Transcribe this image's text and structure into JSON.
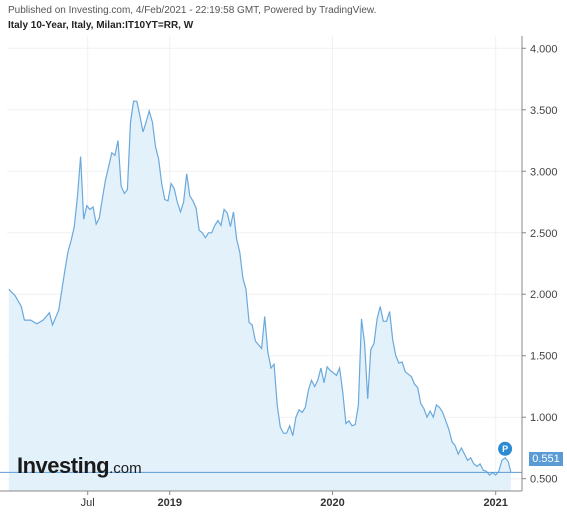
{
  "header": {
    "published": "Published on Investing.com, 4/Feb/2021 - 22:19:58 GMT, Powered by TradingView.",
    "symbol": "Italy 10-Year, Italy, Milan:IT10YT=RR, W"
  },
  "logo": {
    "main": "Investing",
    "domain": ".com"
  },
  "marker_label": "P",
  "last_value_label": "0.551",
  "colors": {
    "line": "#6aa9dc",
    "fill": "#e3f1fb",
    "badge": "#5b9bd5",
    "marker": "#2a8ad4"
  },
  "chart_data": {
    "type": "area",
    "title": "",
    "xlabel": "",
    "ylabel": "",
    "ylim": [
      0.4,
      4.1
    ],
    "yticks": [
      "4.000",
      "3.500",
      "3.000",
      "2.500",
      "2.000",
      "1.500",
      "1.000",
      "0.500"
    ],
    "xticks": [
      {
        "label": "Jul",
        "date": "2018-07-01",
        "bold": false
      },
      {
        "label": "2019",
        "date": "2019-01-01",
        "bold": true
      },
      {
        "label": "2020",
        "date": "2020-01-01",
        "bold": true
      },
      {
        "label": "2021",
        "date": "2021-01-01",
        "bold": true
      }
    ],
    "x_range": [
      "2018-01-01",
      "2021-03-01"
    ],
    "grid": true,
    "last_value": 0.551,
    "series": [
      {
        "values": [
          [
            "2018-01-05",
            2.04
          ],
          [
            "2018-01-19",
            1.99
          ],
          [
            "2018-02-02",
            1.9
          ],
          [
            "2018-02-09",
            1.79
          ],
          [
            "2018-02-23",
            1.79
          ],
          [
            "2018-03-09",
            1.76
          ],
          [
            "2018-03-23",
            1.79
          ],
          [
            "2018-04-06",
            1.85
          ],
          [
            "2018-04-13",
            1.75
          ],
          [
            "2018-04-27",
            1.87
          ],
          [
            "2018-05-11",
            2.2
          ],
          [
            "2018-05-18",
            2.35
          ],
          [
            "2018-05-25",
            2.44
          ],
          [
            "2018-06-01",
            2.55
          ],
          [
            "2018-06-08",
            2.8
          ],
          [
            "2018-06-15",
            3.12
          ],
          [
            "2018-06-22",
            2.61
          ],
          [
            "2018-06-29",
            2.72
          ],
          [
            "2018-07-06",
            2.69
          ],
          [
            "2018-07-13",
            2.71
          ],
          [
            "2018-07-20",
            2.57
          ],
          [
            "2018-07-27",
            2.62
          ],
          [
            "2018-08-03",
            2.78
          ],
          [
            "2018-08-10",
            2.93
          ],
          [
            "2018-08-17",
            3.04
          ],
          [
            "2018-08-24",
            3.15
          ],
          [
            "2018-08-31",
            3.13
          ],
          [
            "2018-09-07",
            3.25
          ],
          [
            "2018-09-14",
            2.88
          ],
          [
            "2018-09-21",
            2.82
          ],
          [
            "2018-09-28",
            2.85
          ],
          [
            "2018-10-05",
            3.4
          ],
          [
            "2018-10-12",
            3.57
          ],
          [
            "2018-10-19",
            3.57
          ],
          [
            "2018-10-26",
            3.45
          ],
          [
            "2018-11-02",
            3.32
          ],
          [
            "2018-11-09",
            3.4
          ],
          [
            "2018-11-16",
            3.49
          ],
          [
            "2018-11-23",
            3.4
          ],
          [
            "2018-11-30",
            3.2
          ],
          [
            "2018-12-07",
            3.1
          ],
          [
            "2018-12-14",
            2.9
          ],
          [
            "2018-12-21",
            2.77
          ],
          [
            "2018-12-28",
            2.76
          ],
          [
            "2019-01-04",
            2.9
          ],
          [
            "2019-01-11",
            2.86
          ],
          [
            "2019-01-18",
            2.75
          ],
          [
            "2019-01-25",
            2.67
          ],
          [
            "2019-02-01",
            2.75
          ],
          [
            "2019-02-08",
            2.98
          ],
          [
            "2019-02-15",
            2.8
          ],
          [
            "2019-02-22",
            2.76
          ],
          [
            "2019-03-01",
            2.7
          ],
          [
            "2019-03-08",
            2.52
          ],
          [
            "2019-03-15",
            2.5
          ],
          [
            "2019-03-22",
            2.46
          ],
          [
            "2019-03-29",
            2.5
          ],
          [
            "2019-04-05",
            2.5
          ],
          [
            "2019-04-12",
            2.56
          ],
          [
            "2019-04-19",
            2.6
          ],
          [
            "2019-04-26",
            2.56
          ],
          [
            "2019-05-03",
            2.69
          ],
          [
            "2019-05-10",
            2.66
          ],
          [
            "2019-05-17",
            2.55
          ],
          [
            "2019-05-24",
            2.67
          ],
          [
            "2019-05-31",
            2.45
          ],
          [
            "2019-06-07",
            2.34
          ],
          [
            "2019-06-14",
            2.13
          ],
          [
            "2019-06-21",
            2.04
          ],
          [
            "2019-06-28",
            1.77
          ],
          [
            "2019-07-05",
            1.75
          ],
          [
            "2019-07-12",
            1.62
          ],
          [
            "2019-07-19",
            1.59
          ],
          [
            "2019-07-26",
            1.56
          ],
          [
            "2019-08-02",
            1.82
          ],
          [
            "2019-08-09",
            1.53
          ],
          [
            "2019-08-16",
            1.4
          ],
          [
            "2019-08-23",
            1.43
          ],
          [
            "2019-08-30",
            1.1
          ],
          [
            "2019-09-06",
            0.92
          ],
          [
            "2019-09-13",
            0.87
          ],
          [
            "2019-09-20",
            0.87
          ],
          [
            "2019-09-27",
            0.93
          ],
          [
            "2019-10-04",
            0.85
          ],
          [
            "2019-10-11",
            1.0
          ],
          [
            "2019-10-18",
            1.06
          ],
          [
            "2019-10-25",
            1.04
          ],
          [
            "2019-11-01",
            1.08
          ],
          [
            "2019-11-08",
            1.22
          ],
          [
            "2019-11-15",
            1.3
          ],
          [
            "2019-11-22",
            1.25
          ],
          [
            "2019-11-29",
            1.3
          ],
          [
            "2019-12-06",
            1.4
          ],
          [
            "2019-12-13",
            1.28
          ],
          [
            "2019-12-20",
            1.41
          ],
          [
            "2019-12-27",
            1.38
          ],
          [
            "2020-01-03",
            1.36
          ],
          [
            "2020-01-10",
            1.34
          ],
          [
            "2020-01-17",
            1.4
          ],
          [
            "2020-01-24",
            1.2
          ],
          [
            "2020-01-31",
            0.95
          ],
          [
            "2020-02-07",
            0.97
          ],
          [
            "2020-02-14",
            0.93
          ],
          [
            "2020-02-21",
            0.94
          ],
          [
            "2020-02-28",
            1.1
          ],
          [
            "2020-03-06",
            1.8
          ],
          [
            "2020-03-13",
            1.6
          ],
          [
            "2020-03-20",
            1.15
          ],
          [
            "2020-03-27",
            1.55
          ],
          [
            "2020-04-03",
            1.6
          ],
          [
            "2020-04-10",
            1.8
          ],
          [
            "2020-04-17",
            1.9
          ],
          [
            "2020-04-24",
            1.78
          ],
          [
            "2020-05-01",
            1.78
          ],
          [
            "2020-05-08",
            1.86
          ],
          [
            "2020-05-15",
            1.63
          ],
          [
            "2020-05-22",
            1.5
          ],
          [
            "2020-05-29",
            1.44
          ],
          [
            "2020-06-05",
            1.45
          ],
          [
            "2020-06-12",
            1.37
          ],
          [
            "2020-06-19",
            1.35
          ],
          [
            "2020-06-26",
            1.33
          ],
          [
            "2020-07-03",
            1.27
          ],
          [
            "2020-07-10",
            1.24
          ],
          [
            "2020-07-17",
            1.11
          ],
          [
            "2020-07-24",
            1.07
          ],
          [
            "2020-07-31",
            1.0
          ],
          [
            "2020-08-07",
            1.05
          ],
          [
            "2020-08-14",
            1.0
          ],
          [
            "2020-08-21",
            1.1
          ],
          [
            "2020-08-28",
            1.08
          ],
          [
            "2020-09-04",
            1.04
          ],
          [
            "2020-09-11",
            0.97
          ],
          [
            "2020-09-18",
            0.9
          ],
          [
            "2020-09-25",
            0.8
          ],
          [
            "2020-10-02",
            0.77
          ],
          [
            "2020-10-09",
            0.7
          ],
          [
            "2020-10-16",
            0.75
          ],
          [
            "2020-10-23",
            0.7
          ],
          [
            "2020-10-30",
            0.65
          ],
          [
            "2020-11-06",
            0.67
          ],
          [
            "2020-11-13",
            0.62
          ],
          [
            "2020-11-20",
            0.6
          ],
          [
            "2020-11-27",
            0.62
          ],
          [
            "2020-12-04",
            0.57
          ],
          [
            "2020-12-11",
            0.56
          ],
          [
            "2020-12-18",
            0.53
          ],
          [
            "2020-12-25",
            0.55
          ],
          [
            "2021-01-01",
            0.53
          ],
          [
            "2021-01-08",
            0.56
          ],
          [
            "2021-01-15",
            0.65
          ],
          [
            "2021-01-22",
            0.67
          ],
          [
            "2021-01-29",
            0.64
          ],
          [
            "2021-02-04",
            0.551
          ]
        ]
      }
    ]
  }
}
